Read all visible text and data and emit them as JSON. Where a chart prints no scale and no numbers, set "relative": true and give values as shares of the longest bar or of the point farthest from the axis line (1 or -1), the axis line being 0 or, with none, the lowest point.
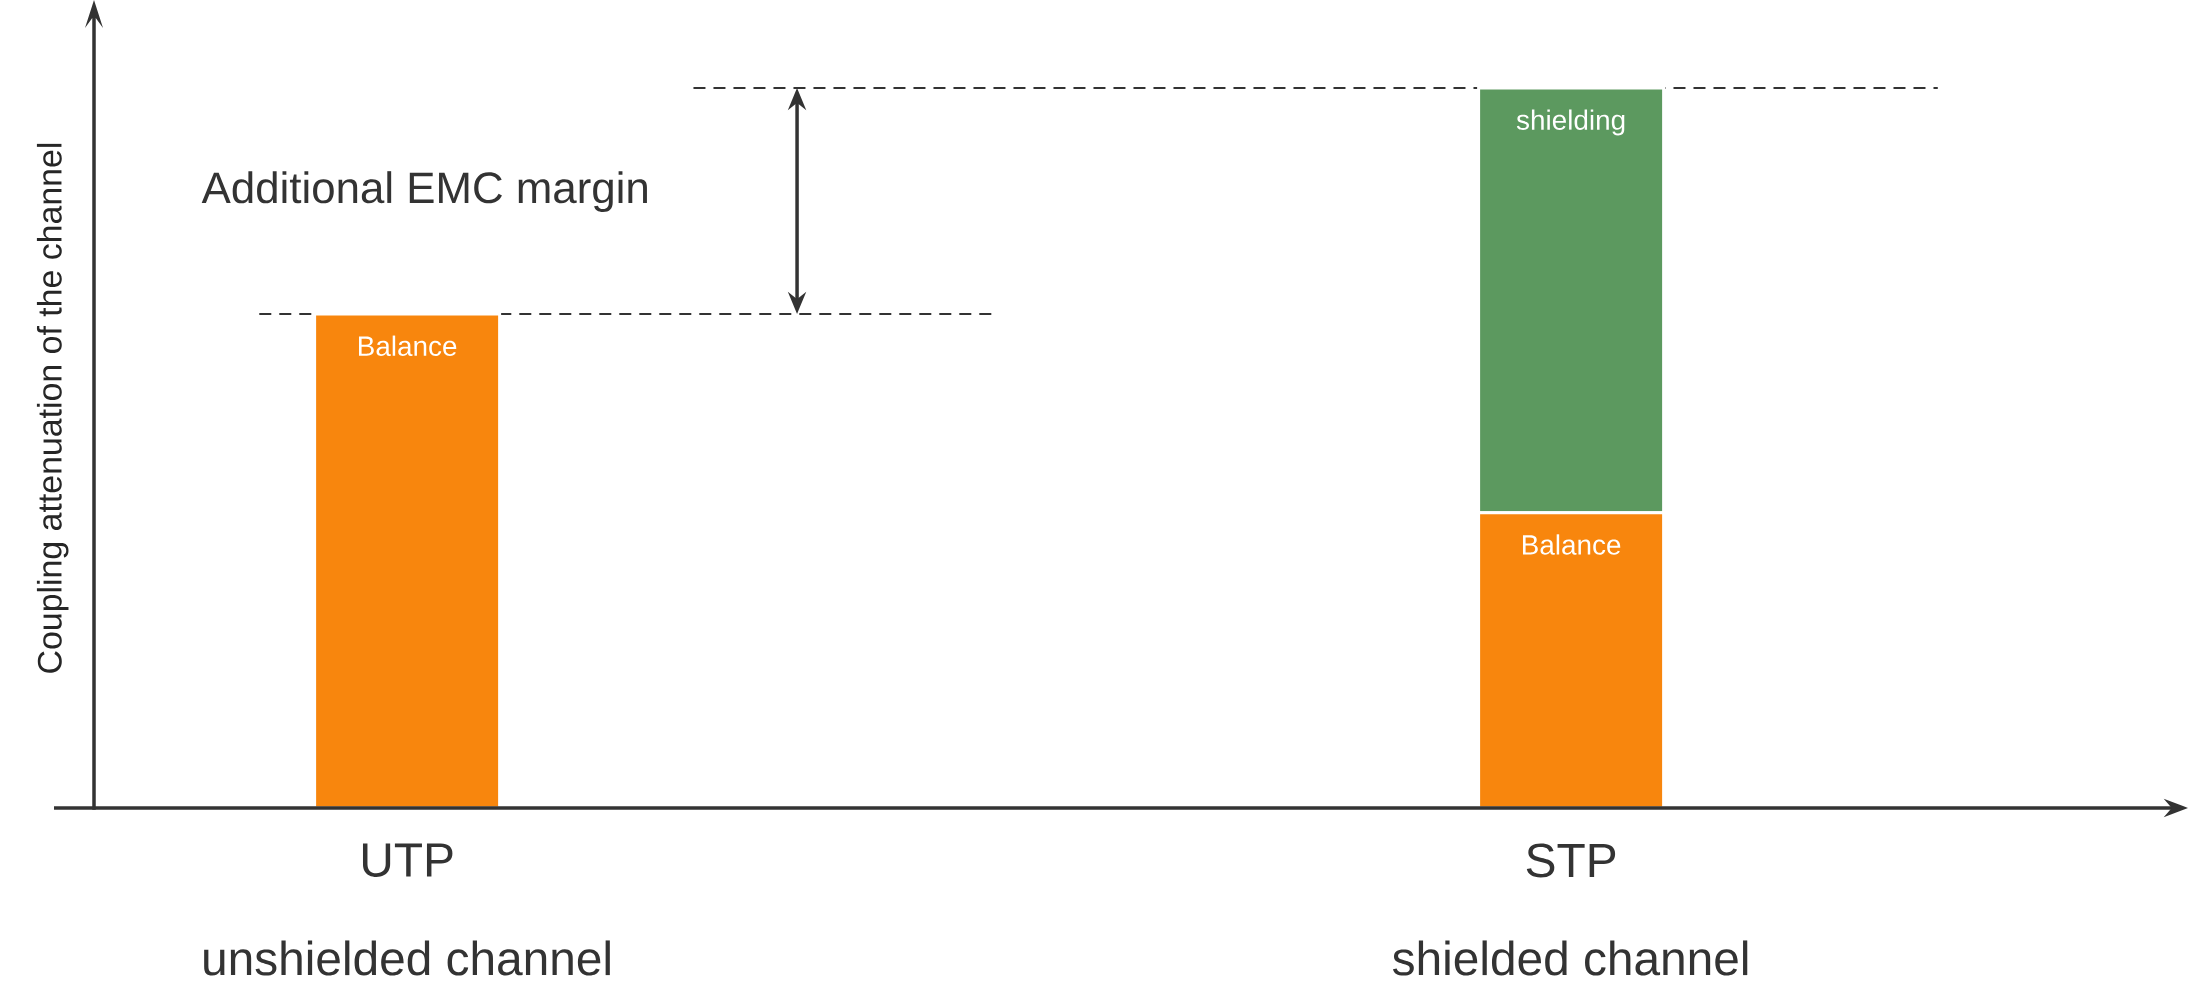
{
  "chart_data": {
    "type": "bar",
    "relative": true,
    "stacked": true,
    "ylabel": "Coupling attenuation of the channel",
    "categories": [
      "UTP",
      "STP"
    ],
    "series": [
      {
        "name": "Balance",
        "color": "#f8860d",
        "values": [
          0.686,
          0.41
        ]
      },
      {
        "name": "shielding",
        "color": "#5c995f",
        "values": [
          null,
          0.59
        ]
      }
    ],
    "ref_lines": [
      {
        "axis": "y",
        "value": 0.686,
        "line_style": "dashed",
        "color": "#333333"
      },
      {
        "axis": "y",
        "value": 1,
        "line_style": "dashed",
        "color": "#333333"
      }
    ],
    "annotations": [
      "Additional EMC margin",
      "unshielded channel",
      "shielded channel"
    ]
  }
}
